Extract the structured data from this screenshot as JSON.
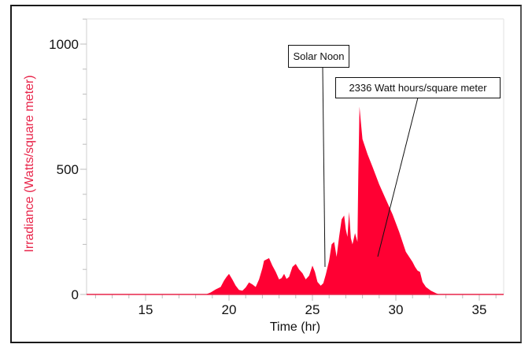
{
  "chart_data": {
    "type": "area",
    "title": "",
    "xlabel": "Time (hr)",
    "ylabel": "Irradiance (Watts/square meter)",
    "xlim": [
      11.5,
      36.5
    ],
    "ylim": [
      0,
      1100
    ],
    "x_ticks": [
      15,
      20,
      25,
      30,
      35
    ],
    "y_ticks": [
      0,
      500,
      1000
    ],
    "grid": false,
    "legend": null,
    "series_color": "#ff0033",
    "series": [
      {
        "name": "Irradiance",
        "x": [
          11.5,
          18.6,
          18.9,
          19.2,
          19.5,
          19.7,
          19.85,
          20.0,
          20.2,
          20.4,
          20.6,
          20.8,
          21.0,
          21.2,
          21.4,
          21.6,
          21.8,
          22.0,
          22.1,
          22.25,
          22.4,
          22.6,
          22.8,
          23.0,
          23.15,
          23.3,
          23.45,
          23.6,
          23.8,
          24.0,
          24.2,
          24.4,
          24.6,
          24.8,
          25.0,
          25.15,
          25.3,
          25.5,
          25.65,
          25.8,
          26.0,
          26.15,
          26.3,
          26.45,
          26.6,
          26.75,
          26.9,
          27.0,
          27.1,
          27.2,
          27.3,
          27.4,
          27.55,
          27.7,
          27.75,
          27.82,
          27.9,
          28.0,
          28.3,
          28.6,
          29.0,
          29.4,
          29.8,
          30.2,
          30.6,
          31.0,
          31.15,
          31.3,
          31.45,
          31.6,
          31.8,
          32.1,
          32.4,
          32.6,
          36.5
        ],
        "values": [
          0,
          0,
          8,
          20,
          30,
          55,
          70,
          82,
          60,
          35,
          18,
          15,
          28,
          48,
          40,
          30,
          60,
          105,
          135,
          140,
          145,
          115,
          90,
          60,
          65,
          82,
          62,
          70,
          110,
          122,
          100,
          85,
          60,
          75,
          115,
          90,
          50,
          35,
          45,
          80,
          135,
          200,
          210,
          150,
          230,
          300,
          315,
          260,
          230,
          330,
          225,
          200,
          245,
          210,
          480,
          750,
          690,
          620,
          560,
          510,
          440,
          380,
          320,
          250,
          170,
          130,
          110,
          95,
          90,
          50,
          30,
          15,
          5,
          0,
          0
        ]
      }
    ],
    "annotations": [
      {
        "text": "Solar Noon",
        "x": 25.6,
        "y": 110
      },
      {
        "text": "2336 Watt hours/square meter",
        "x": 28.7,
        "y": 150
      }
    ]
  },
  "axes": {
    "x_ticks": [
      "15",
      "20",
      "25",
      "30",
      "35"
    ],
    "y_ticks": [
      "0",
      "500",
      "1000"
    ],
    "x_title": "Time (hr)",
    "y_title": "Irradiance (Watts/square meter)"
  },
  "annotations": {
    "solar_noon": "Solar Noon",
    "total_energy": "2336 Watt hours/square meter"
  },
  "colors": {
    "fill": "#ff0033",
    "y_title": "#e8254a",
    "axis": "#c8c8c8"
  }
}
